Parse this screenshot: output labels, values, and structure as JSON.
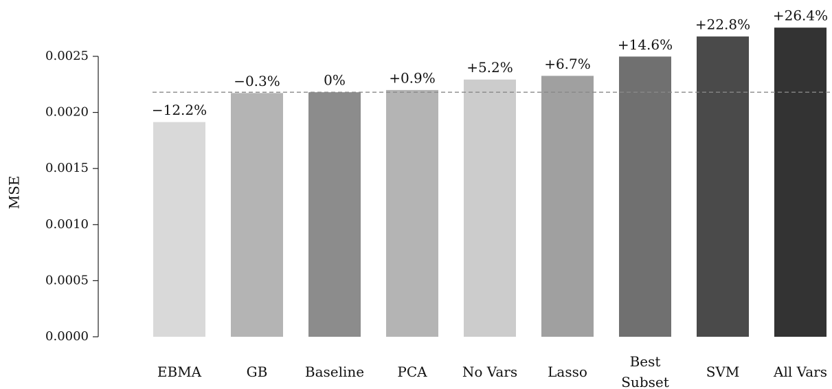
{
  "chart_data": {
    "type": "bar",
    "y_label": "MSE",
    "categories": [
      "EBMA",
      "GB",
      "Baseline",
      "PCA",
      "No Vars",
      "Lasso",
      "Best\nSubset",
      "SVM",
      "All Vars"
    ],
    "values": [
      0.001914,
      0.002173,
      0.00218,
      0.0022,
      0.002293,
      0.002326,
      0.002498,
      0.002677,
      0.002756
    ],
    "bar_labels": [
      "−12.2%",
      "−0.3%",
      "0%",
      "+0.9%",
      "+5.2%",
      "+6.7%",
      "+14.6%",
      "+22.8%",
      "+26.4%"
    ],
    "colors": [
      "#d9d9d9",
      "#b4b4b4",
      "#8c8c8c",
      "#b4b4b4",
      "#cccccc",
      "#a0a0a0",
      "#707070",
      "#4a4a4a",
      "#333333"
    ],
    "reference_line": 0.00218,
    "ylim": [
      0,
      0.0028
    ],
    "yticks": [
      {
        "value": 0,
        "label": "0.0000"
      },
      {
        "value": 0.0005,
        "label": "0.0005"
      },
      {
        "value": 0.001,
        "label": "0.0010"
      },
      {
        "value": 0.0015,
        "label": "0.0015"
      },
      {
        "value": 0.002,
        "label": "0.0020"
      },
      {
        "value": 0.0025,
        "label": "0.0025"
      }
    ]
  }
}
